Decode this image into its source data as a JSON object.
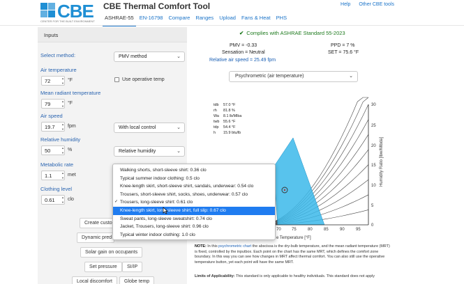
{
  "header": {
    "logo_text": "CBE",
    "logo_sub": "CENTER FOR THE BUILT ENVIRONMENT",
    "app_title": "CBE Thermal Comfort Tool",
    "nav": [
      "ASHRAE-55",
      "EN-16798",
      "Compare",
      "Ranges",
      "Upload",
      "Fans & Heat",
      "PHS"
    ],
    "links": [
      "Help",
      "Other CBE tools"
    ]
  },
  "inputs": {
    "title": "Inputs",
    "method_label": "Select method:",
    "method_value": "PMV method",
    "air_temp_label": "Air temperature",
    "air_temp_value": "72",
    "air_temp_unit": "°F",
    "operative_label": "Use operative temp",
    "mrt_label": "Mean radiant temperature",
    "mrt_value": "79",
    "mrt_unit": "°F",
    "air_speed_label": "Air speed",
    "air_speed_value": "19.7",
    "air_speed_unit": "fpm",
    "air_speed_mode": "With local control",
    "rh_label": "Relative humidity",
    "rh_value": "50",
    "rh_unit": "%",
    "rh_mode": "Relative humidity",
    "met_label": "Metabolic rate",
    "met_value": "1.1",
    "met_unit": "met",
    "clo_label": "Clothing level",
    "clo_value": "0.61",
    "clo_unit": "clo",
    "btn_create": "Create custo",
    "btn_dynamic": "Dynamic pred",
    "btn_solar": "Solar gain on occupants",
    "btn_pressure": "Set pressure",
    "btn_siip": "SI/IP",
    "btn_local": "Local discomfort",
    "btn_globe": "Globe temp"
  },
  "clothing_menu": {
    "items": [
      "Walking shorts, short-sleeve shirt: 0.36 clo",
      "Typical summer indoor clothing: 0.5 clo",
      "Knee-length skirt, short-sleeve shirt, sandals, underwear: 0.54 clo",
      "Trousers, short-sleeve shirt, socks, shoes, underwear: 0.57 clo",
      "Trousers, long-sleeve shirt: 0.61 clo",
      "Knee-length skirt, long-sleeve shirt, full slip: 0.67 clo",
      "Sweat pants, long-sleeve sweatshirt: 0.74 clo",
      "Jacket, Trousers, long-sleeve shirt: 0.96 clo",
      "Typical winter indoor clothing: 1.0 clo"
    ],
    "checked_index": 4,
    "highlighted_index": 5
  },
  "results": {
    "compliance": "Complies with ASHRAE Standard 55-2023",
    "pmv": "PMV = -0.33",
    "ppd": "PPD = 7 %",
    "sensation": "Sensation = Neutral",
    "set": "SET = 75.6 °F",
    "air_speed": "Relative air speed = 25.49 fpm"
  },
  "chart": {
    "selector": "Psychrometric (air temperature)",
    "readout": [
      {
        "k": "tdb",
        "v": "57.0 °F"
      },
      {
        "k": "rh",
        "v": "81.8 %"
      },
      {
        "k": "Wa",
        "v": "8.1   lb/Mlba"
      },
      {
        "k": "twb",
        "v": "55.6 °F"
      },
      {
        "k": "tdp",
        "v": "54.4 °F"
      },
      {
        "k": "h",
        "v": "15.9 btu/lb"
      }
    ],
    "x_ticks": [
      "70",
      "75",
      "80",
      "85",
      "90",
      "95"
    ],
    "y_ticks": [
      "30",
      "25",
      "20",
      "15",
      "10",
      "5",
      "0"
    ],
    "xlabel": "e Temperature [°F]",
    "ylabel": "Humidity Ratio [lbw/Mlbda]",
    "zone_color": "#3bb8ea"
  },
  "note": {
    "title": "NOTE:",
    "lead": "In this",
    "link": "psychrometric chart",
    "text": "the abscissa is the dry-bulb temperature, and the mean radiant temperature (MRT) is fixed, controlled by the inputbox. Each point on the chart has the same MRT, which defines the comfort zone boundary. In this way you can see how changes in MRT affect thermal comfort. You can also still use the operative temperature button, yet each point will have the same MRT.",
    "limits_title": "Limits of Applicability:",
    "limits_text": "This standard is only applicable to healthy individuals. This standard does not apply"
  }
}
